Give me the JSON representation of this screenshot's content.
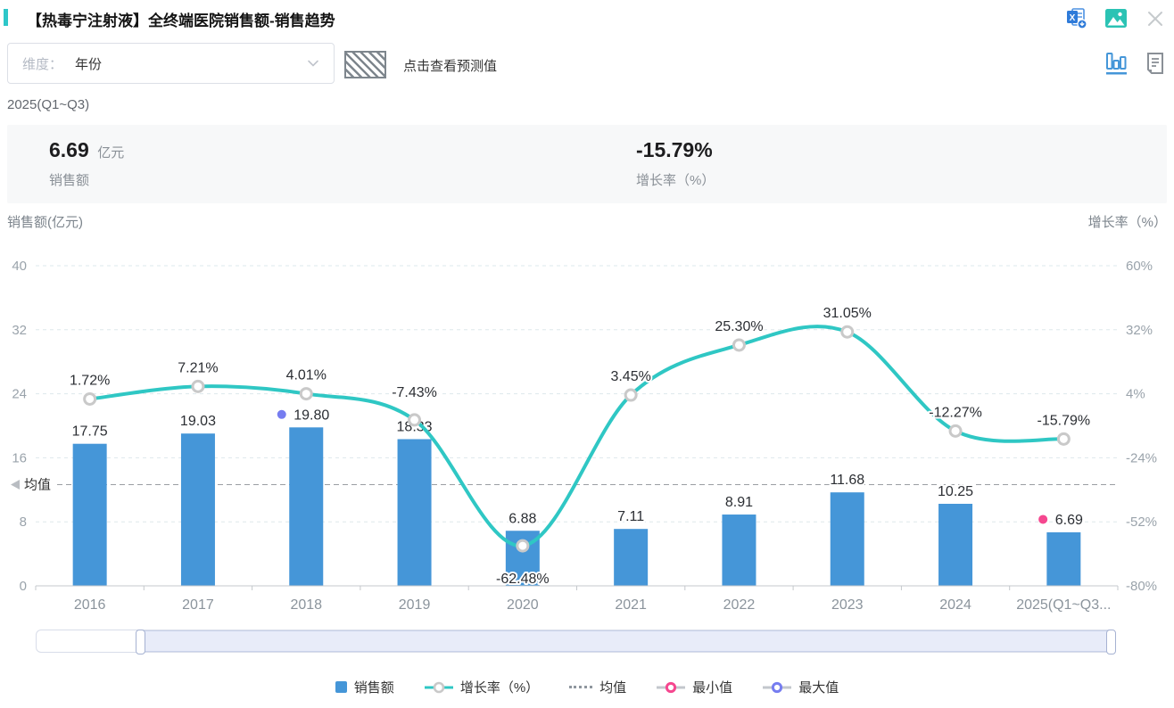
{
  "header": {
    "title": "【热毒宁注射液】全终端医院销售额-销售趋势",
    "icons": [
      "excel-export-icon",
      "image-export-icon",
      "close-icon"
    ]
  },
  "toolbar": {
    "dimension_label": "维度：",
    "dimension_value": "年份",
    "forecast_hint": "点击查看预测值",
    "view_icons": [
      "chart-view-icon",
      "report-view-icon"
    ]
  },
  "period_label": "2025(Q1~Q3)",
  "summary": {
    "sales_value": "6.69",
    "sales_unit": "亿元",
    "sales_caption": "销售额",
    "growth_value": "-15.79%",
    "growth_caption": "增长率（%）"
  },
  "chart_data": {
    "type": "bar+line",
    "categories": [
      "2016",
      "2017",
      "2018",
      "2019",
      "2020",
      "2021",
      "2022",
      "2023",
      "2024",
      "2025(Q1~Q3..."
    ],
    "series": [
      {
        "name": "销售额",
        "type": "bar",
        "values": [
          17.75,
          19.03,
          19.8,
          18.33,
          6.88,
          7.11,
          8.91,
          11.68,
          10.25,
          6.69
        ],
        "color": "#4596d8"
      },
      {
        "name": "增长率（%）",
        "type": "line",
        "values": [
          1.72,
          7.21,
          4.01,
          -7.43,
          -62.48,
          3.45,
          25.3,
          31.05,
          -12.27,
          -15.79
        ],
        "color": "#2fc7c4"
      }
    ],
    "left_axis": {
      "title": "销售额(亿元)",
      "ticks": [
        40,
        32,
        24,
        16,
        8,
        0
      ],
      "range": [
        0,
        40
      ]
    },
    "right_axis": {
      "title": "增长率（%）",
      "ticks": [
        "60%",
        "32%",
        "4%",
        "-24%",
        "-52%",
        "-80%"
      ],
      "range": [
        -80,
        60
      ]
    },
    "mean": {
      "label": "均值",
      "value": 12.64
    },
    "min_marker": {
      "label": "最小值",
      "color": "#f5478f"
    },
    "max_marker": {
      "label": "最大值",
      "color": "#767df0"
    },
    "grid": true,
    "label_offsets": {
      "3": -26,
      "4": 42
    },
    "legend_position": "bottom"
  },
  "legend": {
    "items": [
      "销售额",
      "增长率（%）",
      "均值",
      "最小值",
      "最大值"
    ]
  },
  "colors": {
    "accent": "#2ec7c9",
    "bar": "#4596d8",
    "line": "#2fc7c4",
    "min": "#f5478f",
    "max": "#767df0",
    "marker_ring": "#c9c9c9"
  }
}
